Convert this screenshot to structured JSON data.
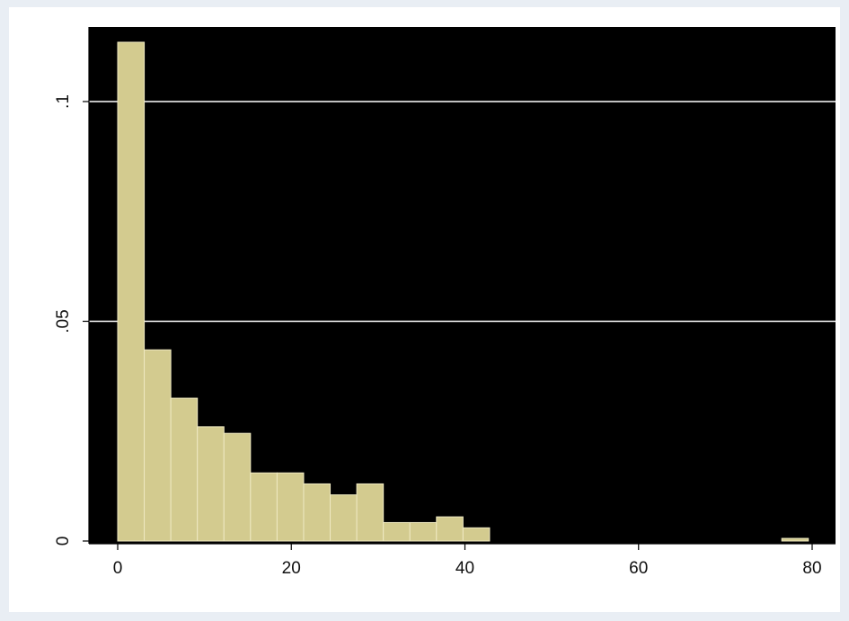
{
  "chart_data": {
    "type": "bar",
    "title": "",
    "xlabel": "",
    "ylabel": "",
    "xlim": [
      0,
      80
    ],
    "ylim": [
      0,
      0.1
    ],
    "x_ticks": [
      0,
      20,
      40,
      60,
      80
    ],
    "x_tick_labels": [
      "0",
      "20",
      "40",
      "60",
      "80"
    ],
    "y_ticks": [
      0,
      0.05,
      0.1
    ],
    "y_tick_labels": [
      "0",
      ".05",
      ".1"
    ],
    "grid": "horizontal",
    "bin_width": 3.06,
    "bins": [
      {
        "x0": 0.0,
        "x1": 3.06,
        "value": 0.1135
      },
      {
        "x0": 3.06,
        "x1": 6.12,
        "value": 0.0435
      },
      {
        "x0": 6.12,
        "x1": 9.18,
        "value": 0.0325
      },
      {
        "x0": 9.18,
        "x1": 12.24,
        "value": 0.026
      },
      {
        "x0": 12.24,
        "x1": 15.3,
        "value": 0.0245
      },
      {
        "x0": 15.3,
        "x1": 18.36,
        "value": 0.0155
      },
      {
        "x0": 18.36,
        "x1": 21.42,
        "value": 0.0155
      },
      {
        "x0": 21.42,
        "x1": 24.48,
        "value": 0.013
      },
      {
        "x0": 24.48,
        "x1": 27.54,
        "value": 0.0105
      },
      {
        "x0": 27.54,
        "x1": 30.6,
        "value": 0.013
      },
      {
        "x0": 30.6,
        "x1": 33.66,
        "value": 0.0042
      },
      {
        "x0": 33.66,
        "x1": 36.72,
        "value": 0.0042
      },
      {
        "x0": 36.72,
        "x1": 39.78,
        "value": 0.0055
      },
      {
        "x0": 39.78,
        "x1": 42.84,
        "value": 0.003
      },
      {
        "x0": 76.5,
        "x1": 79.56,
        "value": 0.0006
      }
    ],
    "colors": {
      "plot_background": "#000000",
      "bar_fill": "#d3cb8f",
      "bar_edge": "#efe9c2",
      "gridline": "#ffffff",
      "outer_background": "#e9eef4",
      "frame_background": "#ffffff"
    }
  }
}
